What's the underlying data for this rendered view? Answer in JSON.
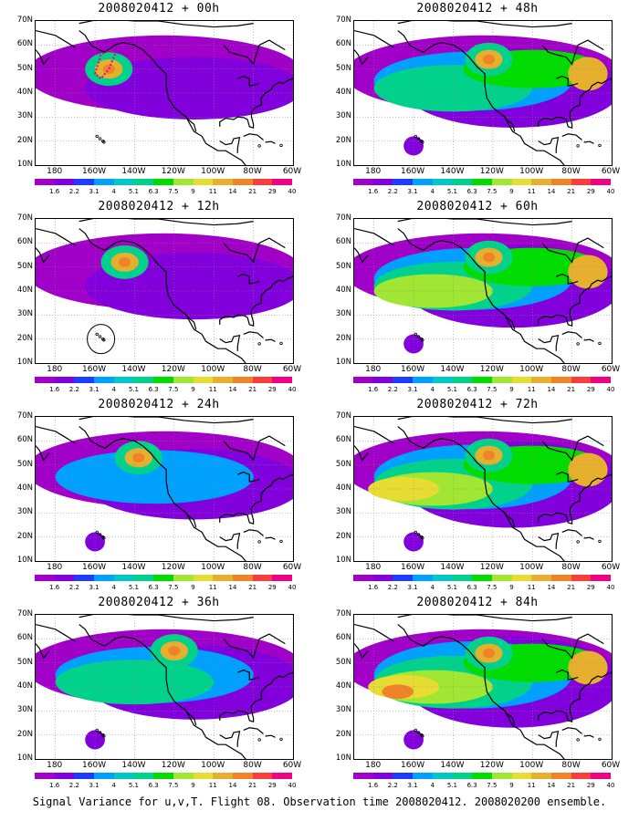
{
  "panels": [
    {
      "title": "2008020412 + 00h",
      "lead": 0
    },
    {
      "title": "2008020412 + 48h",
      "lead": 48
    },
    {
      "title": "2008020412 + 12h",
      "lead": 12
    },
    {
      "title": "2008020412 + 60h",
      "lead": 60
    },
    {
      "title": "2008020412 + 24h",
      "lead": 24
    },
    {
      "title": "2008020412 + 72h",
      "lead": 72
    },
    {
      "title": "2008020412 + 36h",
      "lead": 36
    },
    {
      "title": "2008020412 + 84h",
      "lead": 84
    }
  ],
  "lat_labels": [
    "70N",
    "60N",
    "50N",
    "40N",
    "30N",
    "20N",
    "10N"
  ],
  "lon_labels": [
    "180",
    "160W",
    "140W",
    "120W",
    "100W",
    "80W",
    "60W"
  ],
  "colorbar": {
    "colors": [
      "#a000c8",
      "#8200dc",
      "#1e3cff",
      "#00a0ff",
      "#00c8c8",
      "#00d28c",
      "#00dc00",
      "#a0e632",
      "#e6dc32",
      "#e6af2d",
      "#f08228",
      "#fa3c3c",
      "#f00082"
    ],
    "labels": [
      "1.6",
      "2.2",
      "3.1",
      "4",
      "5.1",
      "6.3",
      "7.5",
      "9",
      "11",
      "14",
      "21",
      "29",
      "40"
    ]
  },
  "caption": "Signal Variance for u,v,T. Flight 08. Observation time 2008020412. 2008020200 ensemble."
}
